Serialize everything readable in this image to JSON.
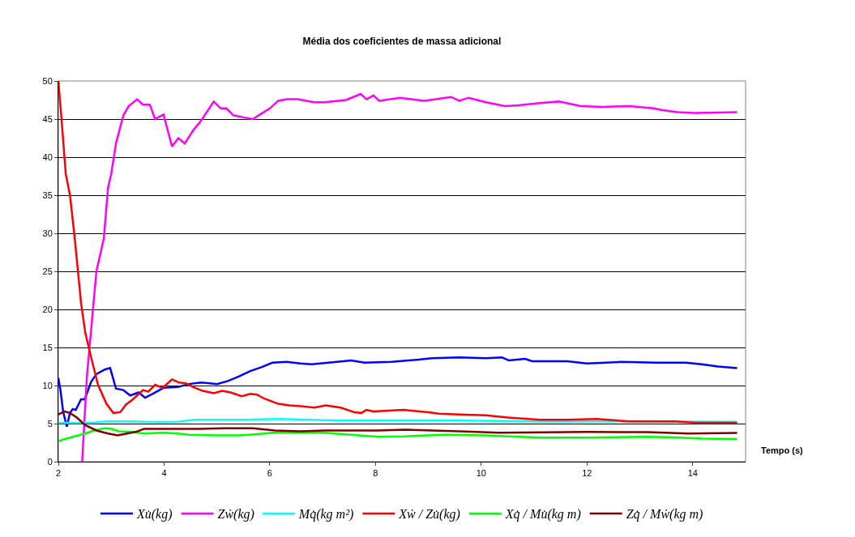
{
  "chart_data": {
    "type": "line",
    "title": "Média dos coeficientes de massa adicional",
    "xlabel": "Tempo (s)",
    "xlim": [
      2,
      15
    ],
    "xticks": [
      2,
      4,
      6,
      8,
      10,
      12,
      14
    ],
    "ylim": [
      0,
      50
    ],
    "yticks": [
      0,
      5,
      10,
      15,
      20,
      25,
      30,
      35,
      40,
      45,
      50
    ],
    "grid": "y",
    "legend": "bottom",
    "marker": "none",
    "line_style": "solid",
    "series": [
      {
        "name": "Xu̇(kg)",
        "color": "#0000ff",
        "x": [
          2.0,
          2.04,
          2.09,
          2.16,
          2.22,
          2.27,
          2.33,
          2.43,
          2.5,
          2.62,
          2.72,
          2.88,
          2.98,
          3.09,
          3.23,
          3.36,
          3.52,
          3.64,
          3.78,
          3.99,
          4.26,
          4.47,
          4.7,
          5.0,
          5.21,
          5.42,
          5.63,
          5.84,
          6.05,
          6.32,
          6.58,
          6.79,
          7.11,
          7.27,
          7.54,
          7.79,
          8.3,
          8.81,
          9.07,
          9.58,
          10.09,
          10.39,
          10.52,
          10.83,
          10.96,
          11.62,
          12.0,
          12.64,
          13.3,
          13.87,
          14.17,
          14.48,
          14.84
        ],
        "values": [
          11,
          9.4,
          6.6,
          4.6,
          6.4,
          6.9,
          6.8,
          8.2,
          8.2,
          10.5,
          11.5,
          12.1,
          12.3,
          9.6,
          9.4,
          8.7,
          9.1,
          8.4,
          8.9,
          9.7,
          9.8,
          10.2,
          10.4,
          10.2,
          10.6,
          11.2,
          11.9,
          12.4,
          13.0,
          13.1,
          12.9,
          12.8,
          13.0,
          13.1,
          13.3,
          13.0,
          13.1,
          13.4,
          13.6,
          13.7,
          13.6,
          13.7,
          13.3,
          13.5,
          13.2,
          13.2,
          12.9,
          13.1,
          13.0,
          13.0,
          12.8,
          12.5,
          12.3
        ]
      },
      {
        "name": "Zẇ(kg)",
        "color": "#ff00ff",
        "x": [
          2.45,
          2.54,
          2.72,
          2.86,
          2.94,
          3.0,
          3.09,
          3.23,
          3.33,
          3.49,
          3.6,
          3.73,
          3.83,
          3.99,
          4.15,
          4.27,
          4.39,
          4.55,
          4.7,
          4.94,
          5.07,
          5.18,
          5.31,
          5.52,
          5.68,
          5.84,
          6.0,
          6.16,
          6.32,
          6.53,
          6.84,
          7.03,
          7.44,
          7.72,
          7.83,
          7.96,
          8.07,
          8.46,
          8.92,
          9.43,
          9.58,
          9.76,
          10.09,
          10.45,
          10.7,
          11.11,
          11.47,
          11.88,
          12.29,
          12.8,
          13.26,
          13.41,
          13.72,
          14.03,
          14.84
        ],
        "values": [
          0,
          11.2,
          25,
          29.3,
          36,
          37.8,
          41.8,
          45.5,
          46.7,
          47.6,
          46.9,
          46.9,
          45,
          45.6,
          41.4,
          42.5,
          41.8,
          43.5,
          44.8,
          47.3,
          46.4,
          46.4,
          45.5,
          45.2,
          45.0,
          45.7,
          46.4,
          47.4,
          47.6,
          47.6,
          47.2,
          47.2,
          47.5,
          48.3,
          47.6,
          48.1,
          47.4,
          47.8,
          47.4,
          47.9,
          47.4,
          47.8,
          47.2,
          46.7,
          46.8,
          47.1,
          47.3,
          46.7,
          46.6,
          46.7,
          46.4,
          46.2,
          45.9,
          45.8,
          45.9
        ]
      },
      {
        "name": "Mq̇(kg m²)",
        "color": "#00ffff",
        "x": [
          2.0,
          2.62,
          2.94,
          3.41,
          3.73,
          4.2,
          4.57,
          5.52,
          6.16,
          7.32,
          9.58,
          11.11,
          12.0,
          14.84
        ],
        "values": [
          5.1,
          5.1,
          5.3,
          5.3,
          5.2,
          5.2,
          5.5,
          5.5,
          5.6,
          5.4,
          5.4,
          5.3,
          5.3,
          5.25
        ]
      },
      {
        "name": "Xẇ / Zu̇(kg)",
        "color": "#ff0000",
        "x": [
          2.0,
          2.06,
          2.14,
          2.22,
          2.3,
          2.35,
          2.43,
          2.51,
          2.62,
          2.75,
          2.91,
          3.04,
          3.17,
          3.28,
          3.41,
          3.6,
          3.7,
          3.83,
          3.97,
          4.15,
          4.28,
          4.41,
          4.55,
          4.73,
          4.94,
          5.1,
          5.26,
          5.47,
          5.63,
          5.76,
          5.89,
          6.16,
          6.37,
          6.58,
          6.84,
          7.06,
          7.34,
          7.6,
          7.73,
          7.83,
          7.96,
          8.53,
          9.0,
          9.2,
          9.58,
          10.09,
          10.5,
          11.11,
          11.62,
          12.18,
          12.8,
          13.66,
          14.07,
          14.84
        ],
        "values": [
          50,
          45,
          37.8,
          35,
          30,
          26.5,
          20.8,
          16.9,
          13.7,
          10.1,
          7.6,
          6.4,
          6.5,
          7.5,
          8.2,
          9.4,
          9.2,
          10.1,
          9.7,
          10.8,
          10.4,
          10.3,
          9.8,
          9.3,
          9.0,
          9.3,
          9.1,
          8.6,
          8.9,
          8.8,
          8.3,
          7.6,
          7.4,
          7.3,
          7.1,
          7.4,
          7.1,
          6.5,
          6.4,
          6.8,
          6.6,
          6.8,
          6.5,
          6.3,
          6.2,
          6.1,
          5.8,
          5.5,
          5.5,
          5.6,
          5.3,
          5.3,
          5.1,
          5.1
        ]
      },
      {
        "name": "Xq̇ / Mu̇(kg m)",
        "color": "#00ff00",
        "x": [
          2.0,
          2.14,
          2.35,
          2.51,
          2.67,
          2.88,
          3.01,
          3.15,
          3.41,
          3.62,
          3.99,
          4.26,
          4.47,
          5.0,
          5.42,
          5.73,
          6.05,
          6.58,
          7.03,
          7.54,
          8.05,
          8.56,
          9.3,
          10.09,
          10.6,
          11.11,
          12.0,
          13.15,
          13.66,
          14.17,
          14.84
        ],
        "values": [
          2.7,
          3.0,
          3.4,
          3.7,
          4.1,
          4.4,
          4.3,
          4.0,
          3.9,
          3.7,
          3.8,
          3.7,
          3.55,
          3.45,
          3.45,
          3.6,
          3.8,
          3.8,
          3.8,
          3.54,
          3.27,
          3.33,
          3.54,
          3.47,
          3.3,
          3.16,
          3.16,
          3.27,
          3.2,
          3.02,
          2.99
        ]
      },
      {
        "name": "Zq̇ / Mẇ(kg m)",
        "color": "#800000",
        "x": [
          2.0,
          2.12,
          2.22,
          2.35,
          2.51,
          2.72,
          2.94,
          3.12,
          3.3,
          3.46,
          3.62,
          3.94,
          4.36,
          4.68,
          5.15,
          5.68,
          6.1,
          6.58,
          7.03,
          8.05,
          8.56,
          9.58,
          10.34,
          12.0,
          13.15,
          13.92,
          14.84
        ],
        "values": [
          6.2,
          6.6,
          6.4,
          5.8,
          4.8,
          4.1,
          3.7,
          3.45,
          3.7,
          3.9,
          4.3,
          4.3,
          4.3,
          4.3,
          4.4,
          4.4,
          4.1,
          4.0,
          4.1,
          4.1,
          4.2,
          4.0,
          3.8,
          3.9,
          3.88,
          3.7,
          3.78
        ]
      }
    ]
  }
}
